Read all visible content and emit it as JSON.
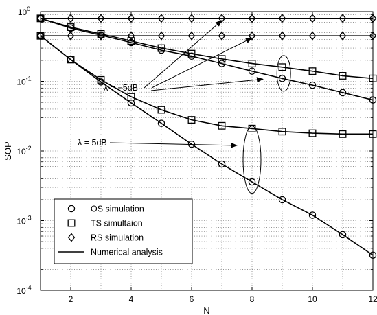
{
  "chart_data": {
    "type": "line",
    "xlabel": "N",
    "ylabel": "SOP",
    "xlim": [
      1,
      12
    ],
    "ylim_log10": [
      -4,
      0
    ],
    "y_scale": "log",
    "x_ticks": [
      2,
      4,
      6,
      8,
      10,
      12
    ],
    "y_ticks": [
      {
        "exp": 0,
        "base": "10",
        "sup": "0"
      },
      {
        "exp": -1,
        "base": "10",
        "sup": "-1"
      },
      {
        "exp": -2,
        "base": "10",
        "sup": "-2"
      },
      {
        "exp": -3,
        "base": "10",
        "sup": "-3"
      },
      {
        "exp": -4,
        "base": "10",
        "sup": "-4"
      }
    ],
    "grid": "dotted, major and minor",
    "legend_position": "bottom-left",
    "legend": [
      {
        "label": "OS simulation",
        "marker": "circle"
      },
      {
        "label": "TS simultaion",
        "marker": "square"
      },
      {
        "label": "RS simulation",
        "marker": "diamond"
      },
      {
        "label": "Numerical analysis",
        "marker": "line"
      }
    ],
    "annotations": [
      {
        "text": "λ = −5dB",
        "targets": [
          [
            7.0,
            0.8
          ],
          [
            8.0,
            0.45
          ],
          [
            9.0,
            0.11
          ]
        ]
      },
      {
        "text": "λ = 5dB",
        "targets": [
          [
            8.0,
            0.02
          ]
        ]
      }
    ],
    "series": [
      {
        "group": "λ = −5dB",
        "marker": "diamond",
        "x": [
          1,
          2,
          3,
          4,
          5,
          6,
          7,
          8,
          9,
          10,
          11,
          12
        ],
        "y": [
          0.8,
          0.8,
          0.8,
          0.8,
          0.8,
          0.8,
          0.8,
          0.8,
          0.8,
          0.8,
          0.8,
          0.8
        ]
      },
      {
        "group": "λ = −5dB",
        "marker": "square",
        "x": [
          1,
          2,
          3,
          4,
          5,
          6,
          7,
          8,
          9,
          10,
          11,
          12
        ],
        "y": [
          0.8,
          0.6,
          0.48,
          0.38,
          0.3,
          0.25,
          0.21,
          0.18,
          0.16,
          0.14,
          0.12,
          0.11
        ]
      },
      {
        "group": "λ = −5dB",
        "marker": "circle",
        "x": [
          1,
          2,
          3,
          4,
          5,
          6,
          7,
          8,
          9,
          10,
          11,
          12
        ],
        "y": [
          0.8,
          0.58,
          0.46,
          0.36,
          0.28,
          0.23,
          0.18,
          0.14,
          0.11,
          0.088,
          0.069,
          0.054
        ]
      },
      {
        "group": "λ = 5dB",
        "marker": "diamond",
        "x": [
          1,
          2,
          3,
          4,
          5,
          6,
          7,
          8,
          9,
          10,
          11,
          12
        ],
        "y": [
          0.45,
          0.45,
          0.45,
          0.45,
          0.45,
          0.45,
          0.45,
          0.45,
          0.45,
          0.45,
          0.45,
          0.45
        ]
      },
      {
        "group": "λ = 5dB",
        "marker": "square",
        "x": [
          1,
          2,
          3,
          4,
          5,
          6,
          7,
          8,
          9,
          10,
          11,
          12
        ],
        "y": [
          0.45,
          0.205,
          0.105,
          0.06,
          0.039,
          0.028,
          0.023,
          0.021,
          0.019,
          0.018,
          0.0175,
          0.0175
        ]
      },
      {
        "group": "λ = 5dB",
        "marker": "circle",
        "x": [
          1,
          2,
          3,
          4,
          5,
          6,
          7,
          8,
          9,
          10,
          11,
          12
        ],
        "y": [
          0.45,
          0.205,
          0.098,
          0.049,
          0.025,
          0.0125,
          0.0065,
          0.0036,
          0.002,
          0.0012,
          0.00063,
          0.00032
        ]
      }
    ]
  }
}
